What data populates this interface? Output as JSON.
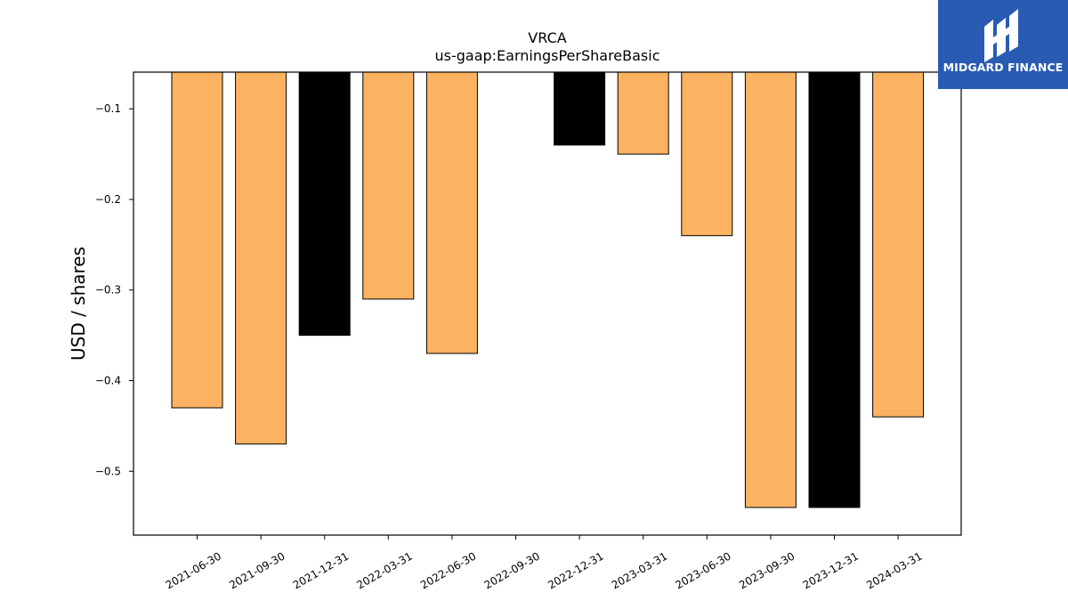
{
  "chart_data": {
    "type": "bar",
    "title": "VRCA",
    "subtitle": "us-gaap:EarningsPerShareBasic",
    "xlabel": "",
    "ylabel": "USD / shares",
    "categories": [
      "2021-06-30",
      "2021-09-30",
      "2021-12-31",
      "2022-03-31",
      "2022-06-30",
      "2022-09-30",
      "2022-12-31",
      "2023-03-31",
      "2023-06-30",
      "2023-09-30",
      "2023-12-31",
      "2024-03-31"
    ],
    "values": [
      -0.43,
      -0.47,
      -0.35,
      -0.31,
      -0.37,
      null,
      -0.14,
      -0.15,
      -0.24,
      -0.54,
      -0.54,
      -0.44
    ],
    "bar_colors": [
      "#fbb362",
      "#fbb362",
      "#000000",
      "#fbb362",
      "#fbb362",
      "#fbb362",
      "#000000",
      "#fbb362",
      "#fbb362",
      "#fbb362",
      "#000000",
      "#fbb362"
    ],
    "yticks": [
      -0.1,
      -0.2,
      -0.3,
      -0.4,
      -0.5
    ],
    "ylim": [
      -0.5705,
      -0.0595
    ],
    "grid": false
  },
  "brand": {
    "name": "MIDGARD FINANCE",
    "color": "#2a5bb3"
  }
}
